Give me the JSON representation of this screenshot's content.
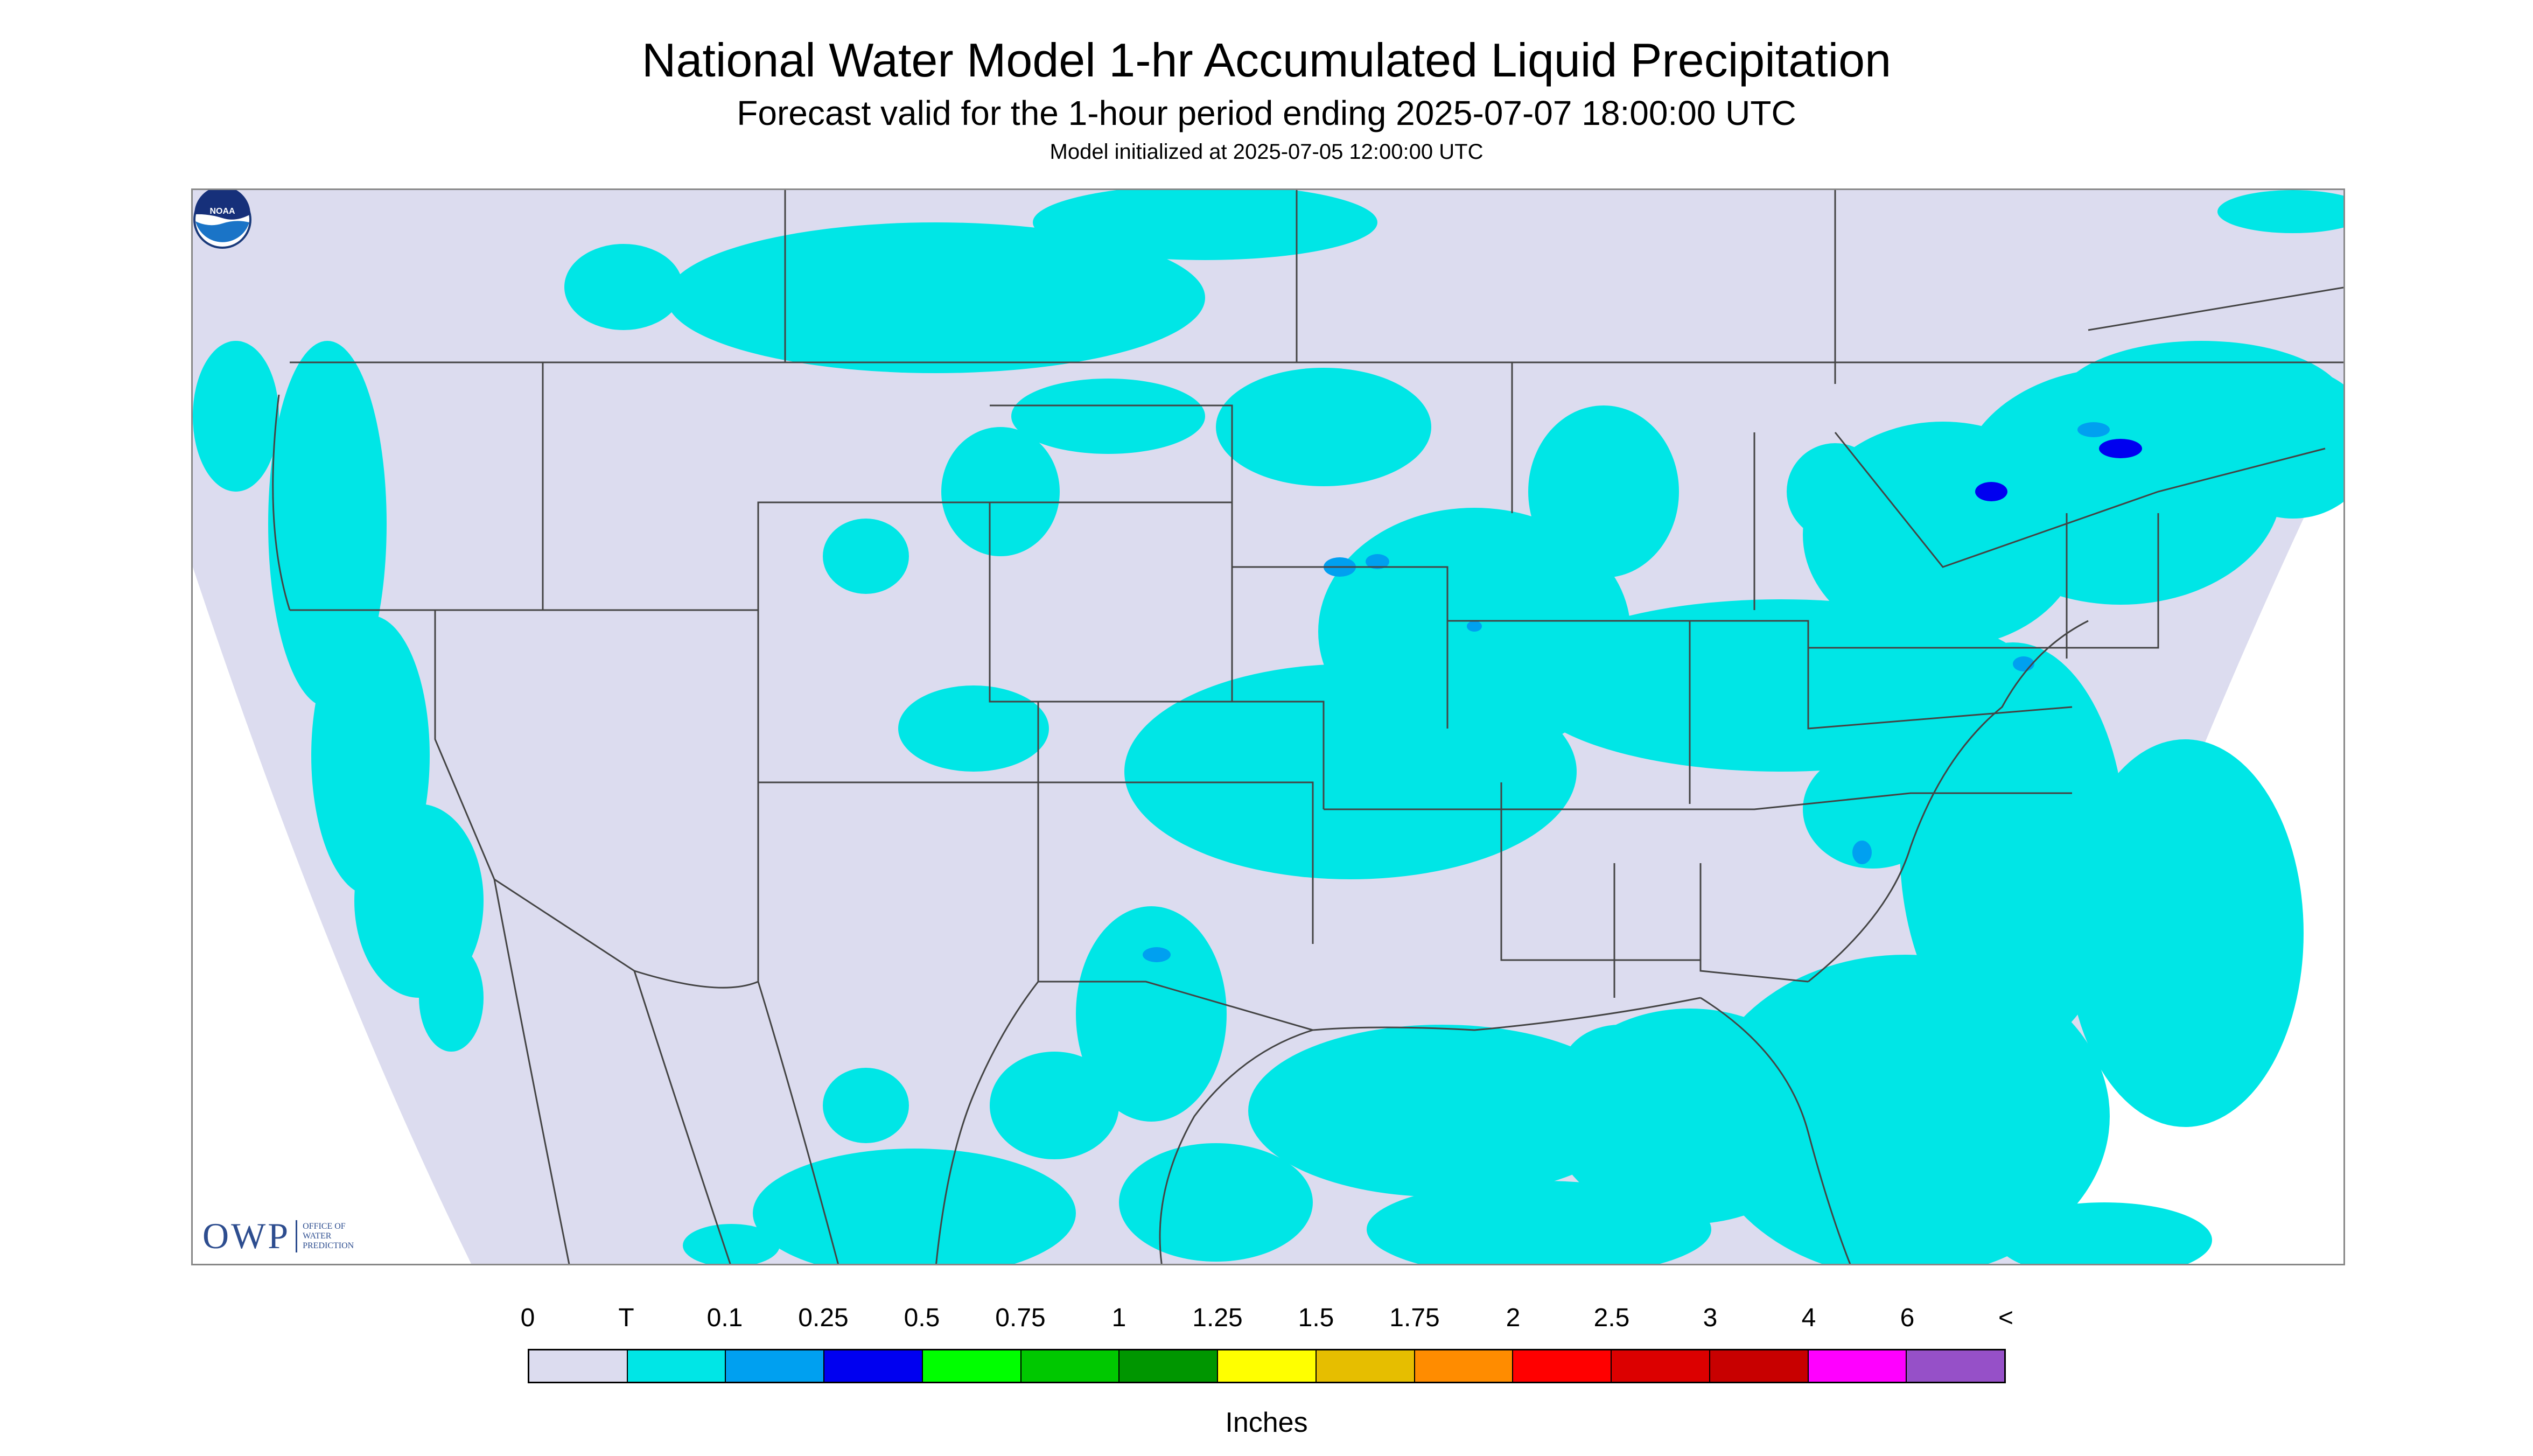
{
  "header": {
    "title": "National Water Model 1-hr Accumulated Liquid Precipitation",
    "subtitle": "Forecast valid for the 1-hour period ending 2025-07-07 18:00:00 UTC",
    "init_line": "Model initialized at 2025-07-05 12:00:00 UTC"
  },
  "logos": {
    "owp_letters": "OWP",
    "owp_words": [
      "OFFICE OF",
      "WATER",
      "PREDICTION"
    ],
    "noaa_text": "NOAA"
  },
  "colors": {
    "no_data": "#ffffff",
    "zero": "#dcdcef",
    "trace": "#00e6e6",
    "light_blue": "#00a0f0",
    "blue": "#0000f0",
    "boundary": "#444444"
  },
  "legend": {
    "labels": [
      "0",
      "T",
      "0.1",
      "0.25",
      "0.5",
      "0.75",
      "1",
      "1.25",
      "1.5",
      "1.75",
      "2",
      "2.5",
      "3",
      "4",
      "6",
      "<"
    ],
    "colors": [
      "#dcdcef",
      "#00e6e6",
      "#00a0f0",
      "#0000f0",
      "#00ff00",
      "#00c800",
      "#009600",
      "#ffff00",
      "#e6be00",
      "#ff8c00",
      "#ff0000",
      "#dc0000",
      "#c80000",
      "#ff00ff",
      "#9650c8"
    ],
    "units": "Inches"
  }
}
